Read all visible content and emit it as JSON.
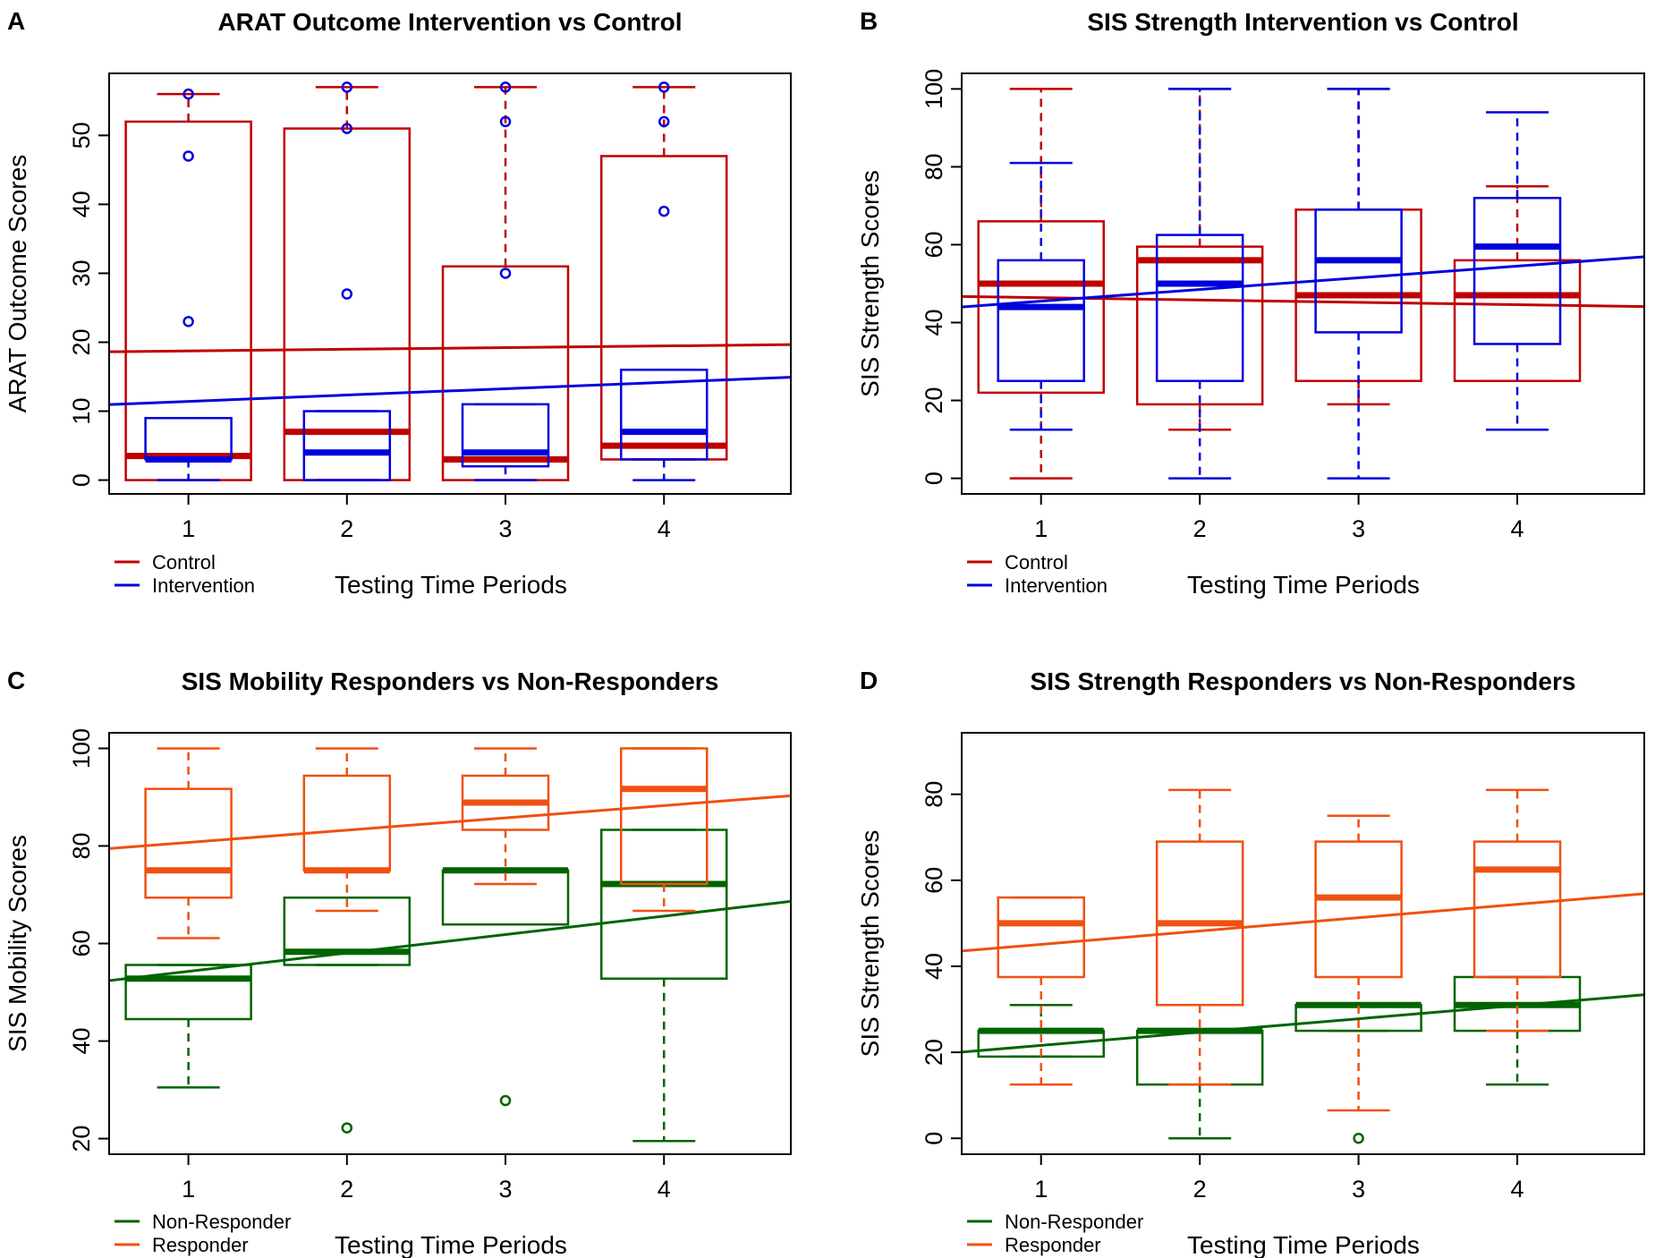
{
  "chart_data": [
    {
      "type": "box",
      "letter": "A",
      "title": "ARAT Outcome Intervention vs Control",
      "xlabel": "Testing Time Periods",
      "ylabel": "ARAT Outcome Scores",
      "categories": [
        "1",
        "2",
        "3",
        "4"
      ],
      "ylim": [
        -2,
        59
      ],
      "yticks": [
        0,
        10,
        20,
        30,
        40,
        50
      ],
      "legend": [
        "Control",
        "Intervention"
      ],
      "series": [
        {
          "name": "Control",
          "color": "#c00000",
          "boxes": [
            {
              "min": 0,
              "q1": 0,
              "median": 3.5,
              "q3": 52,
              "max": 56,
              "outliers": []
            },
            {
              "min": 0,
              "q1": 0,
              "median": 7,
              "q3": 51,
              "max": 57,
              "outliers": []
            },
            {
              "min": 0,
              "q1": 0,
              "median": 3,
              "q3": 31,
              "max": 57,
              "outliers": []
            },
            {
              "min": 3,
              "q1": 3,
              "median": 5,
              "q3": 47,
              "max": 57,
              "outliers": []
            }
          ],
          "trend": {
            "at_x0": 18.5,
            "at_x5": 19.7
          }
        },
        {
          "name": "Intervention",
          "color": "#0000dd",
          "boxes": [
            {
              "min": 0,
              "q1": 3,
              "median": 3,
              "q3": 9,
              "max": 9,
              "outliers": [
                23,
                47,
                56
              ]
            },
            {
              "min": 0,
              "q1": 0,
              "median": 4,
              "q3": 10,
              "max": 10,
              "outliers": [
                27,
                51,
                57
              ]
            },
            {
              "min": 0,
              "q1": 2,
              "median": 4,
              "q3": 11,
              "max": 11,
              "outliers": [
                30,
                52,
                57
              ]
            },
            {
              "min": 0,
              "q1": 3,
              "median": 7,
              "q3": 16,
              "max": 16,
              "outliers": [
                39,
                52,
                57
              ]
            }
          ],
          "trend": {
            "at_x0": 10.5,
            "at_x5": 15.1
          }
        }
      ]
    },
    {
      "type": "box",
      "letter": "B",
      "title": "SIS Strength Intervention vs Control",
      "xlabel": "Testing Time Periods",
      "ylabel": "SIS Strength Scores",
      "categories": [
        "1",
        "2",
        "3",
        "4"
      ],
      "ylim": [
        -4,
        104
      ],
      "yticks": [
        0,
        20,
        40,
        60,
        80,
        100
      ],
      "legend": [
        "Control",
        "Intervention"
      ],
      "series": [
        {
          "name": "Control",
          "color": "#c00000",
          "boxes": [
            {
              "min": 0,
              "q1": 22,
              "median": 50,
              "q3": 66,
              "max": 100,
              "outliers": []
            },
            {
              "min": 12.5,
              "q1": 19,
              "median": 56,
              "q3": 59.5,
              "max": 100,
              "outliers": []
            },
            {
              "min": 19,
              "q1": 25,
              "median": 47,
              "q3": 69,
              "max": 100,
              "outliers": []
            },
            {
              "min": 25,
              "q1": 25,
              "median": 47,
              "q3": 56,
              "max": 75,
              "outliers": []
            }
          ],
          "trend": {
            "at_x0": 47,
            "at_x5": 44
          }
        },
        {
          "name": "Intervention",
          "color": "#0000dd",
          "boxes": [
            {
              "min": 12.5,
              "q1": 25,
              "median": 44,
              "q3": 56,
              "max": 81,
              "outliers": []
            },
            {
              "min": 0,
              "q1": 25,
              "median": 50,
              "q3": 62.5,
              "max": 100,
              "outliers": []
            },
            {
              "min": 0,
              "q1": 37.5,
              "median": 56,
              "q3": 69,
              "max": 100,
              "outliers": []
            },
            {
              "min": 12.5,
              "q1": 34.5,
              "median": 59.5,
              "q3": 72,
              "max": 94,
              "outliers": []
            }
          ],
          "trend": {
            "at_x0": 42.5,
            "at_x5": 57.5
          }
        }
      ]
    },
    {
      "type": "box",
      "letter": "C",
      "title": "SIS Mobility Responders vs Non-Responders",
      "xlabel": "Testing Time Periods",
      "ylabel": "SIS Mobility Scores",
      "categories": [
        "1",
        "2",
        "3",
        "4"
      ],
      "ylim": [
        16.8,
        103.2
      ],
      "yticks": [
        20,
        40,
        60,
        80,
        100
      ],
      "legend": [
        "Non-Responder",
        "Responder"
      ],
      "series": [
        {
          "name": "Non-Responder",
          "color": "#006400",
          "boxes": [
            {
              "min": 30.5,
              "q1": 44.5,
              "median": 52.8,
              "q3": 55.6,
              "max": 55.6,
              "outliers": []
            },
            {
              "min": 55.6,
              "q1": 55.6,
              "median": 58.3,
              "q3": 69.4,
              "max": 69.4,
              "outliers": [
                22.2
              ]
            },
            {
              "min": 63.9,
              "q1": 63.9,
              "median": 75,
              "q3": 75,
              "max": 75,
              "outliers": [
                27.8
              ]
            },
            {
              "min": 19.5,
              "q1": 52.8,
              "median": 72.2,
              "q3": 83.3,
              "max": 83.3,
              "outliers": []
            }
          ],
          "trend": {
            "at_x0": 50.5,
            "at_x5": 69.4
          }
        },
        {
          "name": "Responder",
          "color": "#f05010",
          "boxes": [
            {
              "min": 61.1,
              "q1": 69.4,
              "median": 75,
              "q3": 91.7,
              "max": 100,
              "outliers": []
            },
            {
              "min": 66.7,
              "q1": 75,
              "median": 75,
              "q3": 94.4,
              "max": 100,
              "outliers": []
            },
            {
              "min": 72.2,
              "q1": 83.3,
              "median": 88.9,
              "q3": 94.4,
              "max": 100,
              "outliers": []
            },
            {
              "min": 66.7,
              "q1": 72.2,
              "median": 91.7,
              "q3": 100,
              "max": 100,
              "outliers": []
            }
          ],
          "trend": {
            "at_x0": 78.2,
            "at_x5": 90.8
          }
        }
      ]
    },
    {
      "type": "box",
      "letter": "D",
      "title": "SIS Strength Responders vs Non-Responders",
      "xlabel": "Testing Time Periods",
      "ylabel": "SIS Strength Scores",
      "categories": [
        "1",
        "2",
        "3",
        "4"
      ],
      "ylim": [
        -3.7,
        94.3
      ],
      "yticks": [
        0,
        20,
        40,
        60,
        80
      ],
      "legend": [
        "Non-Responder",
        "Responder"
      ],
      "series": [
        {
          "name": "Non-Responder",
          "color": "#006400",
          "boxes": [
            {
              "min": 19,
              "q1": 19,
              "median": 25,
              "q3": 25,
              "max": 31,
              "outliers": []
            },
            {
              "min": 0,
              "q1": 12.5,
              "median": 25,
              "q3": 25,
              "max": 25,
              "outliers": []
            },
            {
              "min": 25,
              "q1": 25,
              "median": 31,
              "q3": 31,
              "max": 31,
              "outliers": [
                0
              ]
            },
            {
              "min": 12.5,
              "q1": 25,
              "median": 31,
              "q3": 37.5,
              "max": 37.5,
              "outliers": []
            }
          ],
          "trend": {
            "at_x0": 18.5,
            "at_x5": 34
          }
        },
        {
          "name": "Responder",
          "color": "#f05010",
          "boxes": [
            {
              "min": 12.5,
              "q1": 37.5,
              "median": 50,
              "q3": 56,
              "max": 56,
              "outliers": []
            },
            {
              "min": 12.5,
              "q1": 31,
              "median": 50,
              "q3": 69,
              "max": 81,
              "outliers": []
            },
            {
              "min": 6.5,
              "q1": 37.5,
              "median": 56,
              "q3": 69,
              "max": 75,
              "outliers": []
            },
            {
              "min": 25,
              "q1": 37.5,
              "median": 62.5,
              "q3": 69,
              "max": 81,
              "outliers": []
            }
          ],
          "trend": {
            "at_x0": 42,
            "at_x5": 57.5
          }
        }
      ]
    }
  ]
}
